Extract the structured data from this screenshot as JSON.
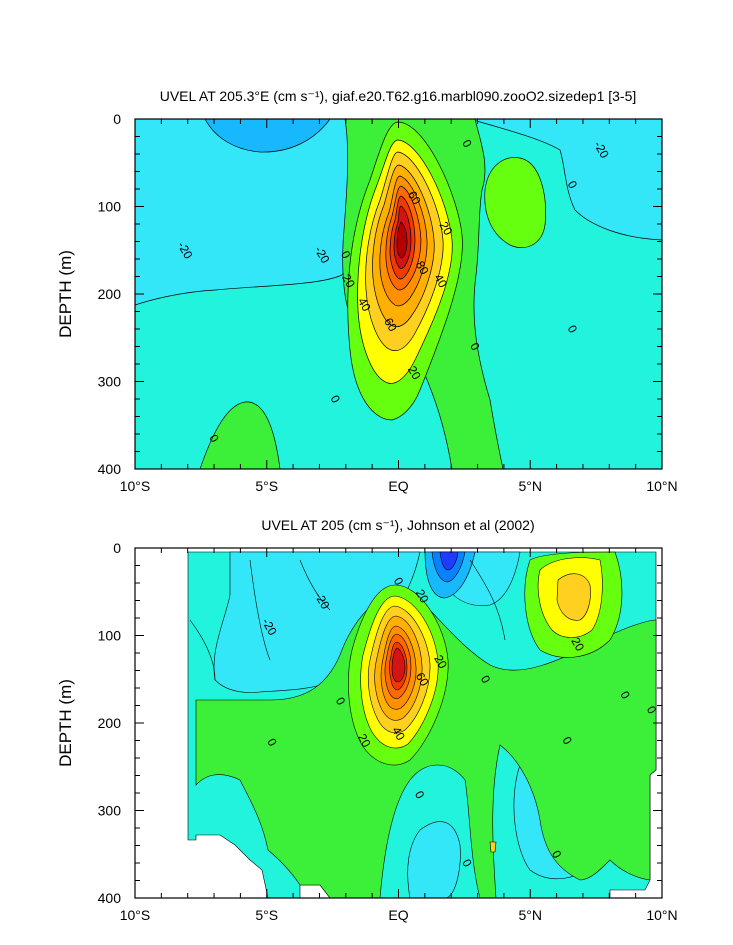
{
  "chart_data": [
    {
      "type": "contour",
      "title": "UVEL AT 205.3°E (cm s⁻¹), giaf.e20.T62.g16.marbl090.zooO2.sizedep1 [3-5]",
      "ylabel": "DEPTH (m)",
      "xlim": [
        -10,
        10
      ],
      "ylim": [
        400,
        0
      ],
      "x_ticks": [
        -10,
        -5,
        0,
        5,
        10
      ],
      "x_tick_labels": [
        "10°S",
        "5°S",
        "EQ",
        "5°N",
        "10°N"
      ],
      "y_ticks": [
        0,
        100,
        200,
        300,
        400
      ],
      "y_tick_labels": [
        "0",
        "100",
        "200",
        "300",
        "400"
      ],
      "contour_interval": 10,
      "color_levels": [
        -40,
        -30,
        -20,
        -10,
        0,
        10,
        20,
        30,
        40,
        50,
        60,
        70,
        80,
        90,
        100
      ],
      "contour_labels": [
        {
          "text": "0",
          "x": 2.6,
          "y": 28
        },
        {
          "text": "-20",
          "x": 7.7,
          "y": 35
        },
        {
          "text": "0",
          "x": 6.6,
          "y": 75
        },
        {
          "text": "60",
          "x": 0.6,
          "y": 90
        },
        {
          "text": "20",
          "x": 1.8,
          "y": 125
        },
        {
          "text": "-20",
          "x": -8.1,
          "y": 150
        },
        {
          "text": "-20",
          "x": -2.9,
          "y": 155
        },
        {
          "text": "0",
          "x": -2.0,
          "y": 155
        },
        {
          "text": "80",
          "x": 0.9,
          "y": 170
        },
        {
          "text": "20",
          "x": -1.9,
          "y": 185
        },
        {
          "text": "40",
          "x": 1.6,
          "y": 185
        },
        {
          "text": "40",
          "x": -1.3,
          "y": 212
        },
        {
          "text": "60",
          "x": -0.3,
          "y": 235
        },
        {
          "text": "0",
          "x": 6.6,
          "y": 240
        },
        {
          "text": "0",
          "x": 2.9,
          "y": 260
        },
        {
          "text": "20",
          "x": 0.6,
          "y": 290
        },
        {
          "text": "0",
          "x": -2.4,
          "y": 320
        },
        {
          "text": "0",
          "x": -7.0,
          "y": 365
        }
      ]
    },
    {
      "type": "contour",
      "title": "UVEL AT 205 (cm s⁻¹), Johnson et al (2002)",
      "ylabel": "DEPTH (m)",
      "xlim": [
        -10,
        10
      ],
      "ylim": [
        400,
        0
      ],
      "x_ticks": [
        -10,
        -5,
        0,
        5,
        10
      ],
      "x_tick_labels": [
        "10°S",
        "5°S",
        "EQ",
        "5°N",
        "10°N"
      ],
      "y_ticks": [
        0,
        100,
        200,
        300,
        400
      ],
      "y_tick_labels": [
        "0",
        "100",
        "200",
        "300",
        "400"
      ],
      "contour_interval": 10,
      "color_levels": [
        -40,
        -30,
        -20,
        -10,
        0,
        10,
        20,
        30,
        40,
        50,
        60,
        70,
        80,
        90,
        100
      ],
      "contour_labels": [
        {
          "text": "0",
          "x": 0,
          "y": 38
        },
        {
          "text": "20",
          "x": 0.9,
          "y": 55
        },
        {
          "text": "-20",
          "x": -2.9,
          "y": 60
        },
        {
          "text": "-20",
          "x": -4.9,
          "y": 90
        },
        {
          "text": "20",
          "x": 6.8,
          "y": 110
        },
        {
          "text": "20",
          "x": 1.6,
          "y": 130
        },
        {
          "text": "60",
          "x": 0.9,
          "y": 150
        },
        {
          "text": "0",
          "x": 3.3,
          "y": 150
        },
        {
          "text": "0",
          "x": 8.6,
          "y": 168
        },
        {
          "text": "0",
          "x": -2.2,
          "y": 175
        },
        {
          "text": "0",
          "x": 9.6,
          "y": 185
        },
        {
          "text": "20",
          "x": -1.3,
          "y": 220
        },
        {
          "text": "40",
          "x": 0,
          "y": 212
        },
        {
          "text": "0",
          "x": 6.4,
          "y": 220
        },
        {
          "text": "0",
          "x": -4.8,
          "y": 222
        },
        {
          "text": "0",
          "x": 0.8,
          "y": 282
        },
        {
          "text": "0",
          "x": 6.0,
          "y": 350
        },
        {
          "text": "0",
          "x": 2.6,
          "y": 360
        }
      ]
    }
  ]
}
